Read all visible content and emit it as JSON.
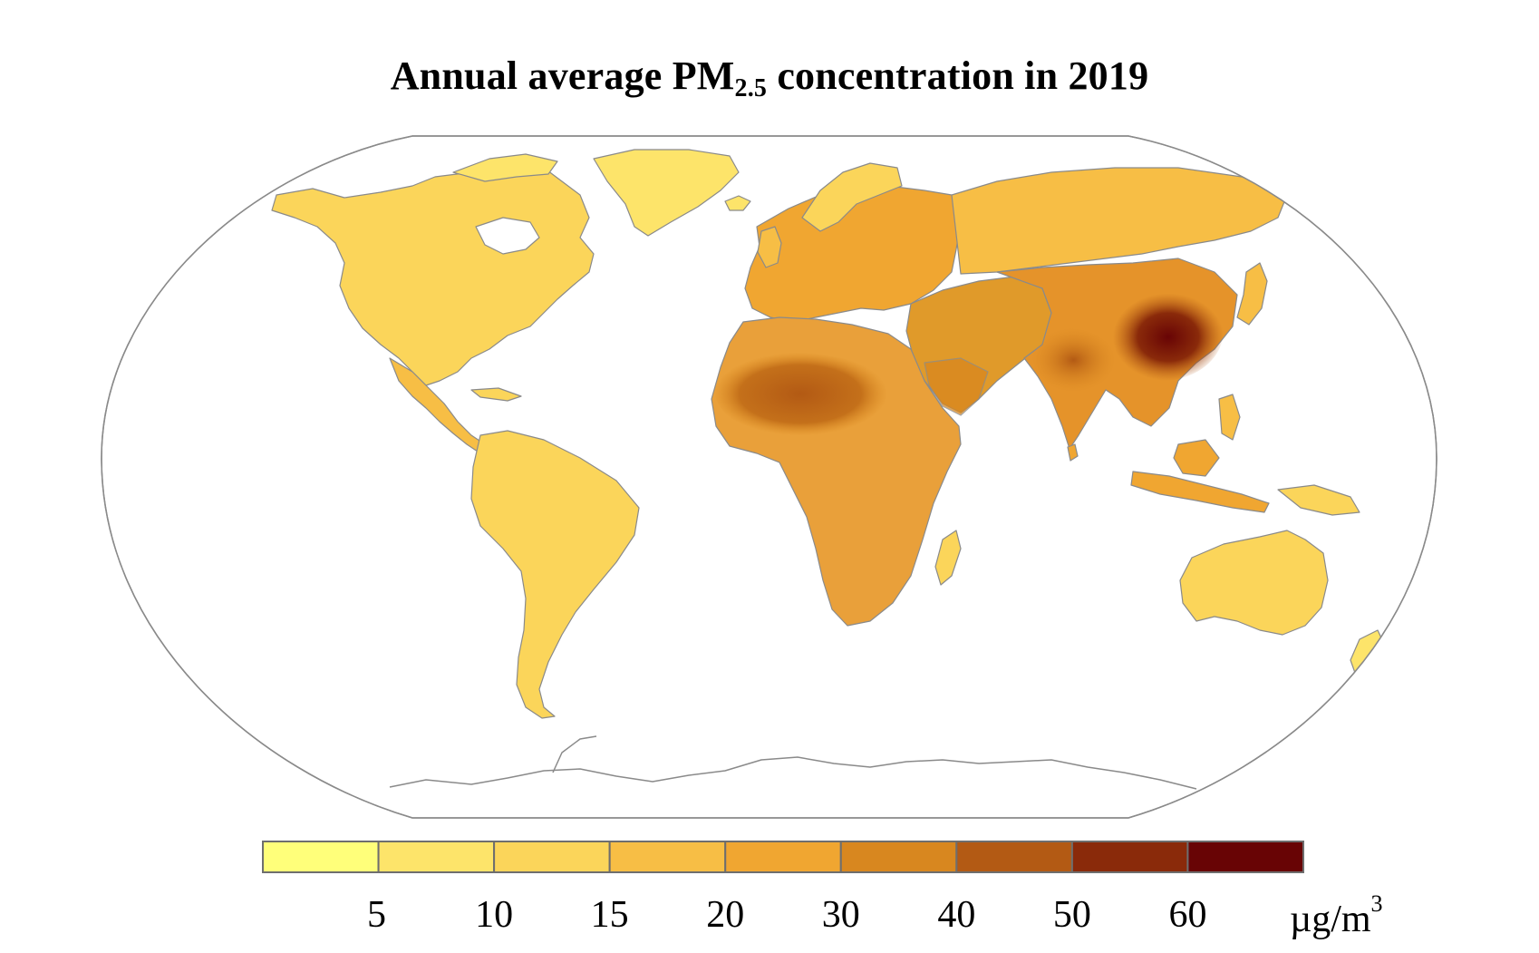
{
  "title": {
    "prefix": "Annual average PM",
    "subscript": "2.5",
    "suffix": " concentration in 2019"
  },
  "legend": {
    "colors": [
      "#ffff7a",
      "#fde46a",
      "#fbd55a",
      "#f7be45",
      "#f0a631",
      "#d8871f",
      "#b35a14",
      "#8a2a0a",
      "#680405"
    ],
    "tick_labels": [
      "5",
      "10",
      "15",
      "20",
      "30",
      "40",
      "50",
      "60"
    ],
    "unit_base": "µg/m",
    "unit_exp": "3"
  },
  "colors": {
    "ocean": "#ffffff",
    "outline": "#8a8a8a",
    "land_default": "#f9cf55"
  }
}
